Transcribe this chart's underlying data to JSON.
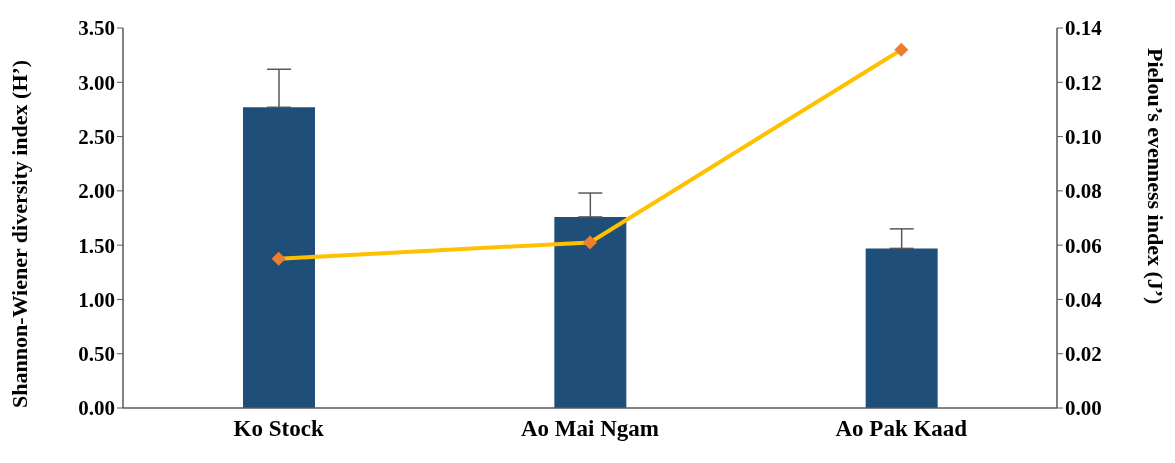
{
  "chart_data": {
    "type": "bar",
    "categories": [
      "Ko Stock",
      "Ao Mai Ngam",
      "Ao Pak Kaad"
    ],
    "ylabel": "Shannon-Wiener diversity index (H’)",
    "y2label": "Pielou’s evenness index (J’)",
    "series": [
      {
        "color": "#1f4e79",
        "values": [
          2.77,
          1.76,
          1.47
        ],
        "errors": [
          [
            2.77,
            3.12
          ],
          [
            1.76,
            1.98
          ],
          [
            1.47,
            1.65
          ]
        ]
      },
      {
        "type": "line",
        "axis": "y2",
        "color": "#ffc000",
        "colors": [
          "#ed7d31",
          "#ed7d31",
          "#ed7d31"
        ],
        "values": [
          0.055,
          0.061,
          0.132
        ],
        "marker": "diamond"
      }
    ],
    "ylim": [
      0,
      3.5
    ],
    "yticks": [
      {
        "value": 0,
        "label": "0.00"
      },
      {
        "value": 0.5,
        "label": "0.50"
      },
      {
        "value": 1,
        "label": "1.00"
      },
      {
        "value": 1.5,
        "label": "1.50"
      },
      {
        "value": 2,
        "label": "2.00"
      },
      {
        "value": 2.5,
        "label": "2.50"
      },
      {
        "value": 3,
        "label": "3.00"
      },
      {
        "value": 3.5,
        "label": "3.50"
      }
    ],
    "y2lim": [
      0,
      0.14
    ],
    "y2ticks": [
      {
        "value": 0,
        "label": "0.00"
      },
      {
        "value": 0.02,
        "label": "0.02"
      },
      {
        "value": 0.04,
        "label": "0.04"
      },
      {
        "value": 0.06,
        "label": "0.06"
      },
      {
        "value": 0.08,
        "label": "0.08"
      },
      {
        "value": 0.1,
        "label": "0.10"
      },
      {
        "value": 0.12,
        "label": "0.12"
      },
      {
        "value": 0.14,
        "label": "0.14"
      }
    ],
    "grid": false,
    "legend": false
  }
}
